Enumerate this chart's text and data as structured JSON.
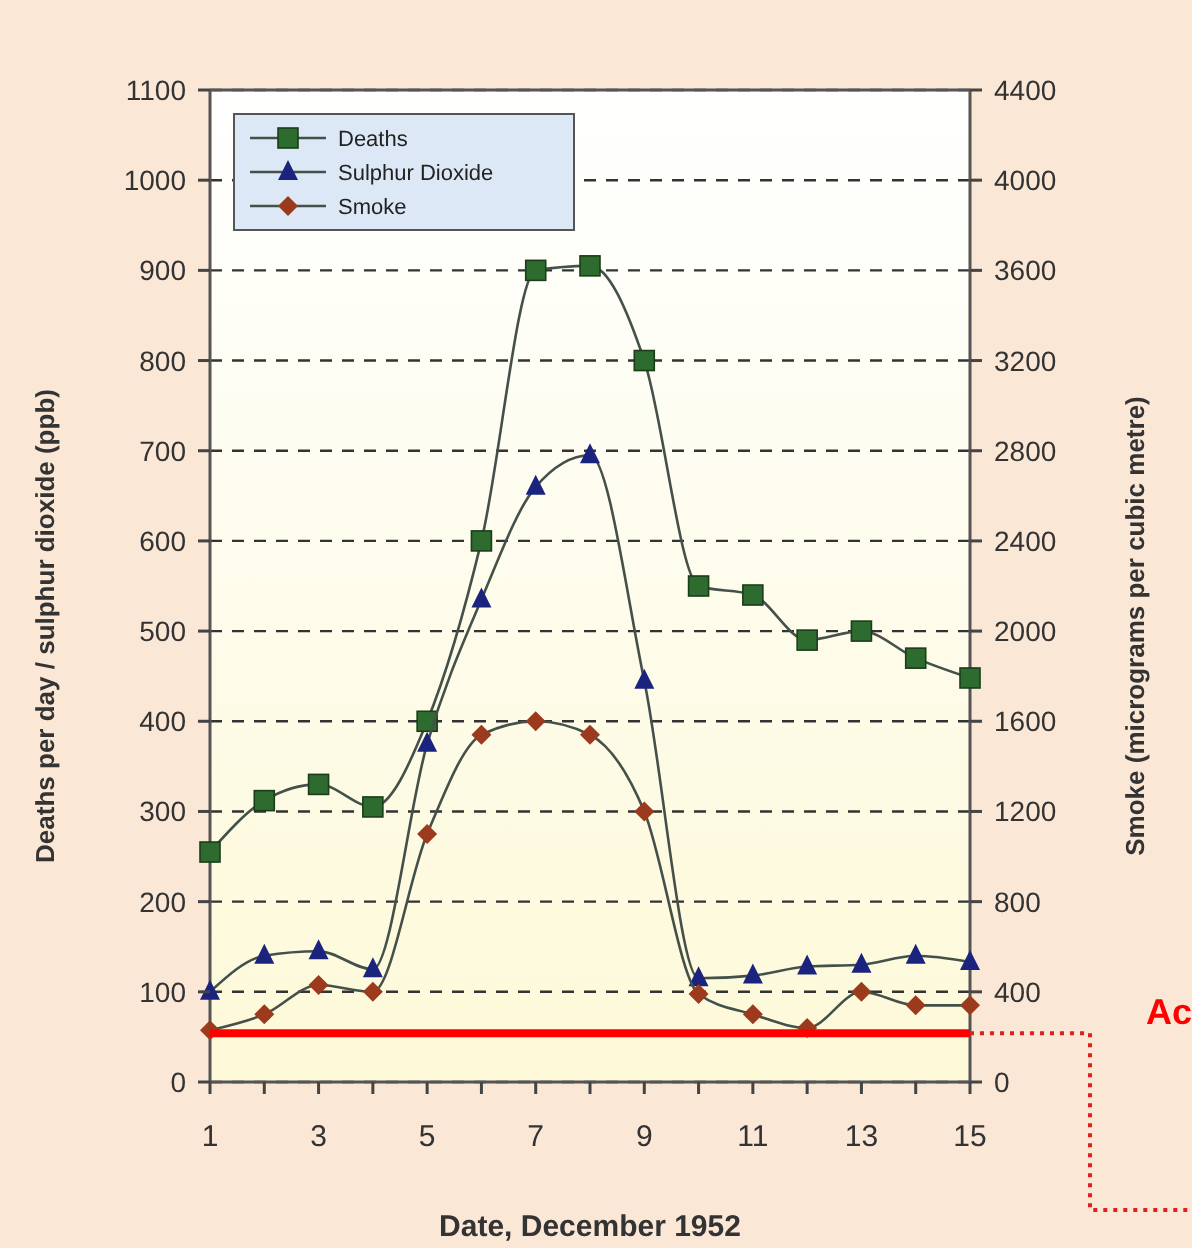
{
  "chart_data": {
    "type": "line",
    "xlabel": "Date, December 1952",
    "ylabel": "Deaths per day / sulphur dioxide (ppb)",
    "y2label": "Smoke (micrograms per cubic metre)",
    "x": [
      1,
      2,
      3,
      4,
      5,
      6,
      7,
      8,
      9,
      10,
      11,
      12,
      13,
      14,
      15
    ],
    "series": [
      {
        "name": "Deaths",
        "color": "#2e6b2e",
        "marker": "square",
        "values": [
          255,
          312,
          330,
          305,
          400,
          600,
          900,
          905,
          800,
          550,
          540,
          490,
          500,
          470,
          448
        ]
      },
      {
        "name": "Sulphur Dioxide",
        "color": "#1a237e",
        "marker": "triangle",
        "values": [
          100,
          140,
          145,
          125,
          375,
          535,
          660,
          695,
          445,
          115,
          118,
          128,
          130,
          140,
          133
        ]
      },
      {
        "name": "Smoke",
        "color": "#9c3a1e",
        "marker": "diamond",
        "axis": "y2",
        "values": [
          230,
          300,
          430,
          400,
          1100,
          1540,
          1600,
          1540,
          1200,
          390,
          300,
          240,
          400,
          340,
          340
        ]
      }
    ],
    "xlim": [
      1,
      15
    ],
    "xticks": [
      1,
      {
        "value": 2,
        "label": null
      },
      3,
      {
        "value": 4,
        "label": null
      },
      5,
      {
        "value": 6,
        "label": null
      },
      7,
      {
        "value": 8,
        "label": null
      },
      9,
      {
        "value": 10,
        "label": null
      },
      11,
      {
        "value": 12,
        "label": null
      },
      13,
      {
        "value": 14,
        "label": null
      },
      15
    ],
    "ylim": [
      0,
      1100
    ],
    "yticks": [
      0,
      100,
      200,
      300,
      400,
      500,
      600,
      700,
      800,
      900,
      1000,
      1100
    ],
    "y2lim": [
      0,
      4400
    ],
    "y2ticks": [
      0,
      400,
      800,
      1200,
      1600,
      2000,
      2400,
      2800,
      3200,
      3600,
      4000,
      4400
    ],
    "grid": "y",
    "legend": "top left",
    "ref_lines": [
      {
        "axis": "y",
        "value": 54,
        "color": "#ff0000",
        "line_style": "solid"
      }
    ],
    "annotations": [
      "Ac"
    ]
  }
}
